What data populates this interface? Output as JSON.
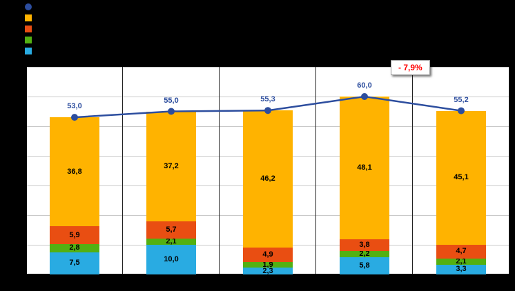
{
  "legend": {
    "items": [
      {
        "name": "total-line-series",
        "shape": "circle",
        "color": "#2C4D9E",
        "label": ""
      },
      {
        "name": "orange-series",
        "shape": "square",
        "color": "#FFB300",
        "label": ""
      },
      {
        "name": "red-series",
        "shape": "square",
        "color": "#E94E12",
        "label": ""
      },
      {
        "name": "green-series",
        "shape": "square",
        "color": "#53B012",
        "label": ""
      },
      {
        "name": "cyan-series",
        "shape": "square",
        "color": "#29ABE2",
        "label": ""
      }
    ]
  },
  "annotation": {
    "text": "- 7,9%",
    "color": "#FF0000"
  },
  "chart_data": {
    "type": "bar",
    "subtype": "stacked-bars-with-total-line",
    "title": "",
    "xlabel": "",
    "ylabel": "",
    "categories": [
      "",
      "",
      "",
      "",
      ""
    ],
    "ylim": [
      0,
      70
    ],
    "grid": true,
    "gridline_step": 10,
    "legend_position": "top-left",
    "series": [
      {
        "name": "cyan",
        "color": "#29ABE2",
        "values": [
          7.5,
          10.0,
          2.3,
          5.8,
          3.3
        ],
        "labels": [
          "7,5",
          "10,0",
          "2,3",
          "5,8",
          "3,3"
        ]
      },
      {
        "name": "green",
        "color": "#53B012",
        "values": [
          2.8,
          2.1,
          1.9,
          2.2,
          2.1
        ],
        "labels": [
          "2,8",
          "2,1",
          "1,9",
          "2,2",
          "2,1"
        ]
      },
      {
        "name": "red",
        "color": "#E94E12",
        "values": [
          5.9,
          5.7,
          4.9,
          3.8,
          4.7
        ],
        "labels": [
          "5,9",
          "5,7",
          "4,9",
          "3,8",
          "4,7"
        ]
      },
      {
        "name": "orange",
        "color": "#FFB300",
        "values": [
          36.8,
          37.2,
          46.2,
          48.1,
          45.1
        ],
        "labels": [
          "36,8",
          "37,2",
          "46,2",
          "48,1",
          "45,1"
        ]
      }
    ],
    "line": {
      "name": "total",
      "color": "#2C4D9E",
      "values": [
        53.0,
        55.0,
        55.3,
        60.0,
        55.2
      ],
      "labels": [
        "53,0",
        "55,0",
        "55,3",
        "60,0",
        "55,2"
      ]
    }
  }
}
